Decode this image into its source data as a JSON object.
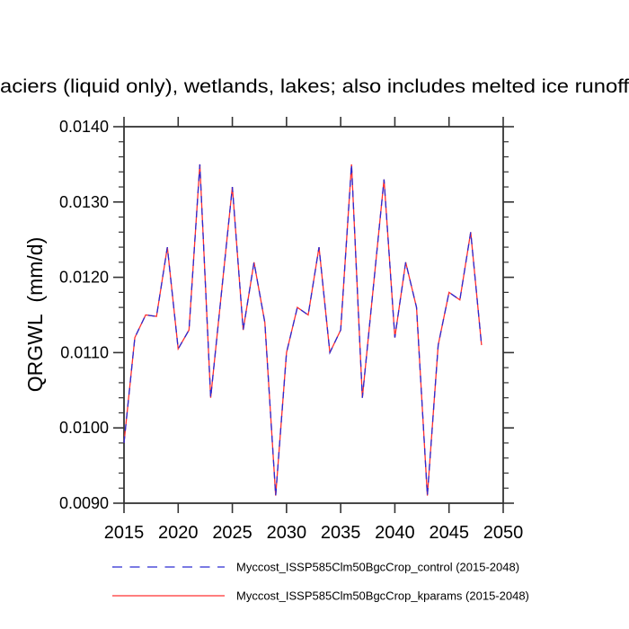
{
  "title": "aciers (liquid only), wetlands, lakes; also includes melted ice runoff",
  "y_axis": {
    "label": "QRGWL  (mm/d)",
    "ticks": [
      "0.0090",
      "0.0100",
      "0.0110",
      "0.0120",
      "0.0130",
      "0.0140"
    ],
    "minor_step": 0.0002
  },
  "x_axis": {
    "ticks": [
      "2015",
      "2020",
      "2025",
      "2030",
      "2035",
      "2040",
      "2045",
      "2050"
    ]
  },
  "legend": [
    {
      "label": "Myccost_ISSP585Clm50BgcCrop_control (2015-2048)",
      "color": "#2a2ad2",
      "style": "dashed"
    },
    {
      "label": "Myccost_ISSP585Clm50BgcCrop_kparams (2015-2048)",
      "color": "#ff3030",
      "style": "solid"
    }
  ],
  "chart_data": {
    "type": "line",
    "title": "aciers (liquid only), wetlands, lakes; also includes melted ice runoff",
    "xlabel": "",
    "ylabel": "QRGWL (mm/d)",
    "xlim": [
      2015,
      2050
    ],
    "ylim": [
      0.009,
      0.014
    ],
    "grid": false,
    "legend_position": "bottom",
    "x": [
      2015,
      2016,
      2017,
      2018,
      2019,
      2020,
      2021,
      2022,
      2023,
      2024,
      2025,
      2026,
      2027,
      2028,
      2029,
      2030,
      2031,
      2032,
      2033,
      2034,
      2035,
      2036,
      2037,
      2038,
      2039,
      2040,
      2041,
      2042,
      2043,
      2044,
      2045,
      2046,
      2047,
      2048
    ],
    "series": [
      {
        "name": "Myccost_ISSP585Clm50BgcCrop_control (2015-2048)",
        "values": [
          0.0098,
          0.0112,
          0.0115,
          0.01148,
          0.0124,
          0.01105,
          0.0113,
          0.0135,
          0.0104,
          0.0118,
          0.0132,
          0.0113,
          0.0122,
          0.0114,
          0.0091,
          0.011,
          0.0116,
          0.0115,
          0.0124,
          0.011,
          0.0113,
          0.0135,
          0.0104,
          0.01185,
          0.0133,
          0.0112,
          0.0122,
          0.0116,
          0.0091,
          0.0111,
          0.0118,
          0.0117,
          0.0126,
          0.0111
        ]
      },
      {
        "name": "Myccost_ISSP585Clm50BgcCrop_kparams (2015-2048)",
        "values": [
          0.0098,
          0.0112,
          0.0115,
          0.01148,
          0.0124,
          0.01105,
          0.0113,
          0.0135,
          0.0104,
          0.0118,
          0.0132,
          0.0113,
          0.0122,
          0.0114,
          0.0091,
          0.011,
          0.0116,
          0.0115,
          0.0124,
          0.011,
          0.0113,
          0.0135,
          0.0104,
          0.01185,
          0.0133,
          0.0112,
          0.0122,
          0.0116,
          0.0091,
          0.0111,
          0.0118,
          0.0117,
          0.0126,
          0.0111
        ]
      }
    ]
  }
}
